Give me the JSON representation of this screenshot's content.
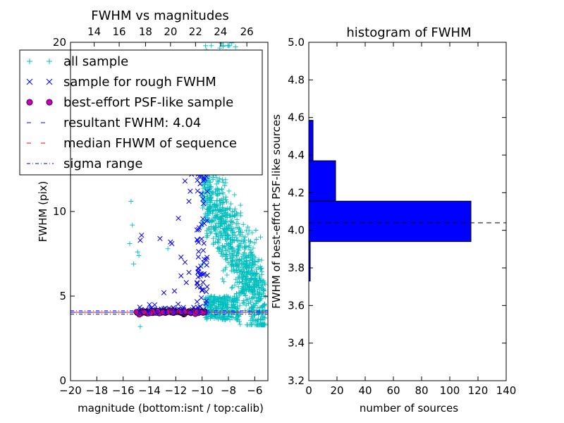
{
  "chart_data": [
    {
      "type": "scatter",
      "title": "FWHM vs magnitudes",
      "xlabel": "magnitude (bottom:isnt / top:calib)",
      "ylabel": "FWHM (pix)",
      "xlim": [
        -20,
        -5
      ],
      "ylim": [
        0,
        20
      ],
      "x_ticks": [
        "−20",
        "−18",
        "−16",
        "−14",
        "−12",
        "−10",
        "−8",
        "−6"
      ],
      "x_tick_values": [
        -20,
        -18,
        -16,
        -14,
        -12,
        -10,
        -8,
        -6
      ],
      "y_ticks": [
        "0",
        "5",
        "10",
        "20"
      ],
      "y_tick_values": [
        0,
        5,
        10,
        20
      ],
      "top_axis": {
        "label": "calib",
        "ticks": [
          "14",
          "16",
          "18",
          "20",
          "22",
          "24",
          "26"
        ],
        "bottom_equivalents": [
          -18.2,
          -16.3,
          -14.3,
          -12.4,
          -10.5,
          -8.6,
          -6.6
        ]
      },
      "resultant_fwhm": 4.04,
      "median_fwhm": 4.04,
      "sigma_range": [
        3.93,
        4.13
      ],
      "series": [
        {
          "name": "all sample",
          "marker": "+",
          "color": "#00bfbf",
          "description": "magnitudes ~ -10 to -5, FWHM mostly 3.5-12, scattered up to 20"
        },
        {
          "name": "sample for rough FWHM",
          "marker": "x",
          "color": "#0000ff",
          "description": "magnitudes ~ -15 to -9.6, FWHM 4-14"
        },
        {
          "name": "best-effort PSF-like sample",
          "marker": "o",
          "color": "#bf00bf",
          "description": "magnitudes ~ -15 to -9.8, FWHM ~ 4.04"
        }
      ],
      "legend": {
        "position": "upper-left",
        "entries": [
          "all sample",
          "sample for rough FWHM",
          "best-effort PSF-like sample",
          "resultant FWHM: 4.04",
          "median FHWM of sequence",
          "sigma range"
        ]
      }
    },
    {
      "type": "bar",
      "orientation": "horizontal",
      "title": "histogram of FWHM",
      "xlabel": "number of sources",
      "ylabel": "FWHM of best-effort PSF-like sources",
      "xlim": [
        0,
        140
      ],
      "ylim": [
        3.2,
        5.0
      ],
      "x_ticks": [
        "0",
        "20",
        "40",
        "60",
        "80",
        "100",
        "120",
        "140"
      ],
      "y_ticks": [
        "3.2",
        "3.4",
        "3.6",
        "3.8",
        "4.0",
        "4.2",
        "4.4",
        "4.6",
        "4.8",
        "5.0"
      ],
      "bins": [
        {
          "low": 3.73,
          "high": 3.94,
          "count": 1
        },
        {
          "low": 3.94,
          "high": 4.155,
          "count": 115
        },
        {
          "low": 4.155,
          "high": 4.37,
          "count": 19
        },
        {
          "low": 4.37,
          "high": 4.585,
          "count": 3
        }
      ],
      "reference_line": 4.04,
      "bar_color": "#0000ff"
    }
  ]
}
